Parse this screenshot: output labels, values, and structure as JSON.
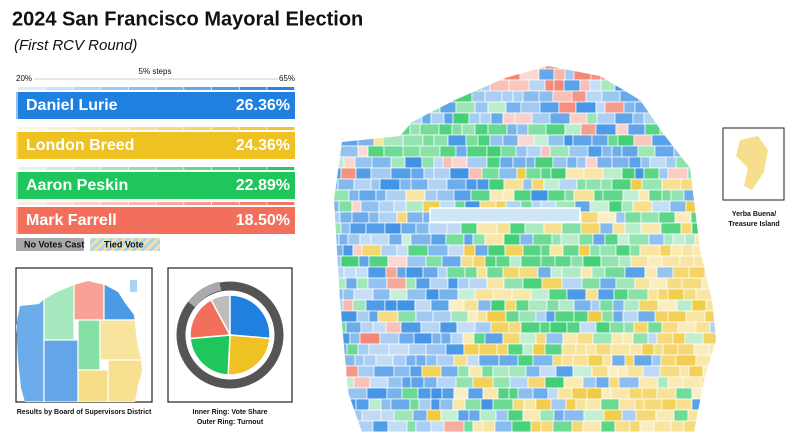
{
  "title": "2024 San Francisco Mayoral Election",
  "subtitle": "(First RCV Round)",
  "scale": {
    "min_label": "20%",
    "step_label": "5% steps",
    "max_label": "65%"
  },
  "candidates": [
    {
      "name": "Daniel Lurie",
      "color": "#1f80e0",
      "share": 26.36,
      "share_label": "26.36%"
    },
    {
      "name": "London Breed",
      "color": "#efc223",
      "share": 24.36,
      "share_label": "24.36%"
    },
    {
      "name": "Aaron Peskin",
      "color": "#1fc65c",
      "share": 22.89,
      "share_label": "22.89%"
    },
    {
      "name": "Mark Farrell",
      "color": "#f2705b",
      "share": 18.5,
      "share_label": "18.50%"
    }
  ],
  "legend": {
    "no_votes": "No Votes Cast",
    "tied": "Tied Vote"
  },
  "captions": {
    "district_map": "Results by Board of Supervisors District",
    "inner_ring": "Inner Ring: Vote Share",
    "outer_ring": "Outer Ring: Turnout",
    "island_line1": "Yerba Buena/",
    "island_line2": "Treasure Island"
  }
}
